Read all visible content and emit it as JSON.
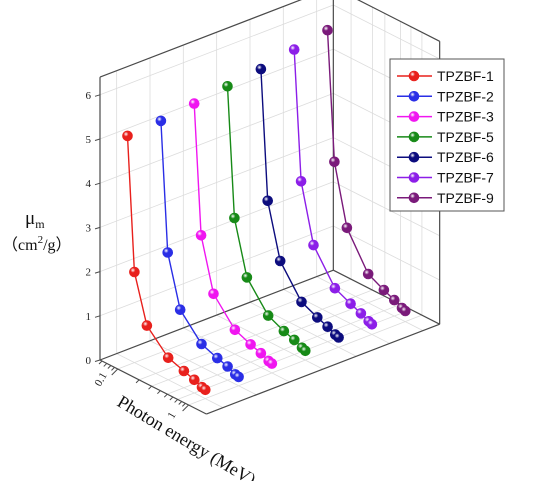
{
  "chart_data": {
    "type": "line",
    "projection": "3d",
    "x": [
      0.08,
      0.1,
      0.15,
      0.3,
      0.5,
      0.7,
      0.9,
      1.0
    ],
    "xlabel": "Photon energy (MeV)",
    "xtick_labels": [
      "0.1",
      "1"
    ],
    "ylabel_symbol": "μ",
    "ylabel_subscript": "m",
    "ylabel_unit_base": "（cm",
    "ylabel_unit_sup": "2",
    "ylabel_unit_tail": "/g）",
    "ylim": [
      0,
      6.4
    ],
    "yticks": [
      "0",
      "1",
      "2",
      "3",
      "4",
      "5",
      "6"
    ],
    "grid": true,
    "legend_position": "top-right",
    "series": [
      {
        "name": "TPZBF-1",
        "color": "#e8201c",
        "values": [
          5.05,
          2.05,
          0.98,
          0.5,
          0.38,
          0.3,
          0.22,
          0.2
        ]
      },
      {
        "name": "TPZBF-2",
        "color": "#2a2ee6",
        "values": [
          5.1,
          2.2,
          1.05,
          0.52,
          0.38,
          0.31,
          0.22,
          0.2
        ]
      },
      {
        "name": "TPZBF-3",
        "color": "#f016f0",
        "values": [
          5.2,
          2.3,
          1.12,
          0.55,
          0.4,
          0.32,
          0.23,
          0.21
        ]
      },
      {
        "name": "TPZBF-5",
        "color": "#178a17",
        "values": [
          5.3,
          2.4,
          1.2,
          0.58,
          0.41,
          0.33,
          0.24,
          0.21
        ]
      },
      {
        "name": "TPZBF-6",
        "color": "#0c0c7e",
        "values": [
          5.4,
          2.5,
          1.28,
          0.6,
          0.43,
          0.34,
          0.25,
          0.22
        ]
      },
      {
        "name": "TPZBF-7",
        "color": "#8c1ee8",
        "values": [
          5.55,
          2.65,
          1.35,
          0.62,
          0.45,
          0.35,
          0.26,
          0.23
        ]
      },
      {
        "name": "TPZBF-9",
        "color": "#7a1a7a",
        "values": [
          5.7,
          2.8,
          1.45,
          0.65,
          0.47,
          0.36,
          0.27,
          0.24
        ]
      }
    ]
  }
}
